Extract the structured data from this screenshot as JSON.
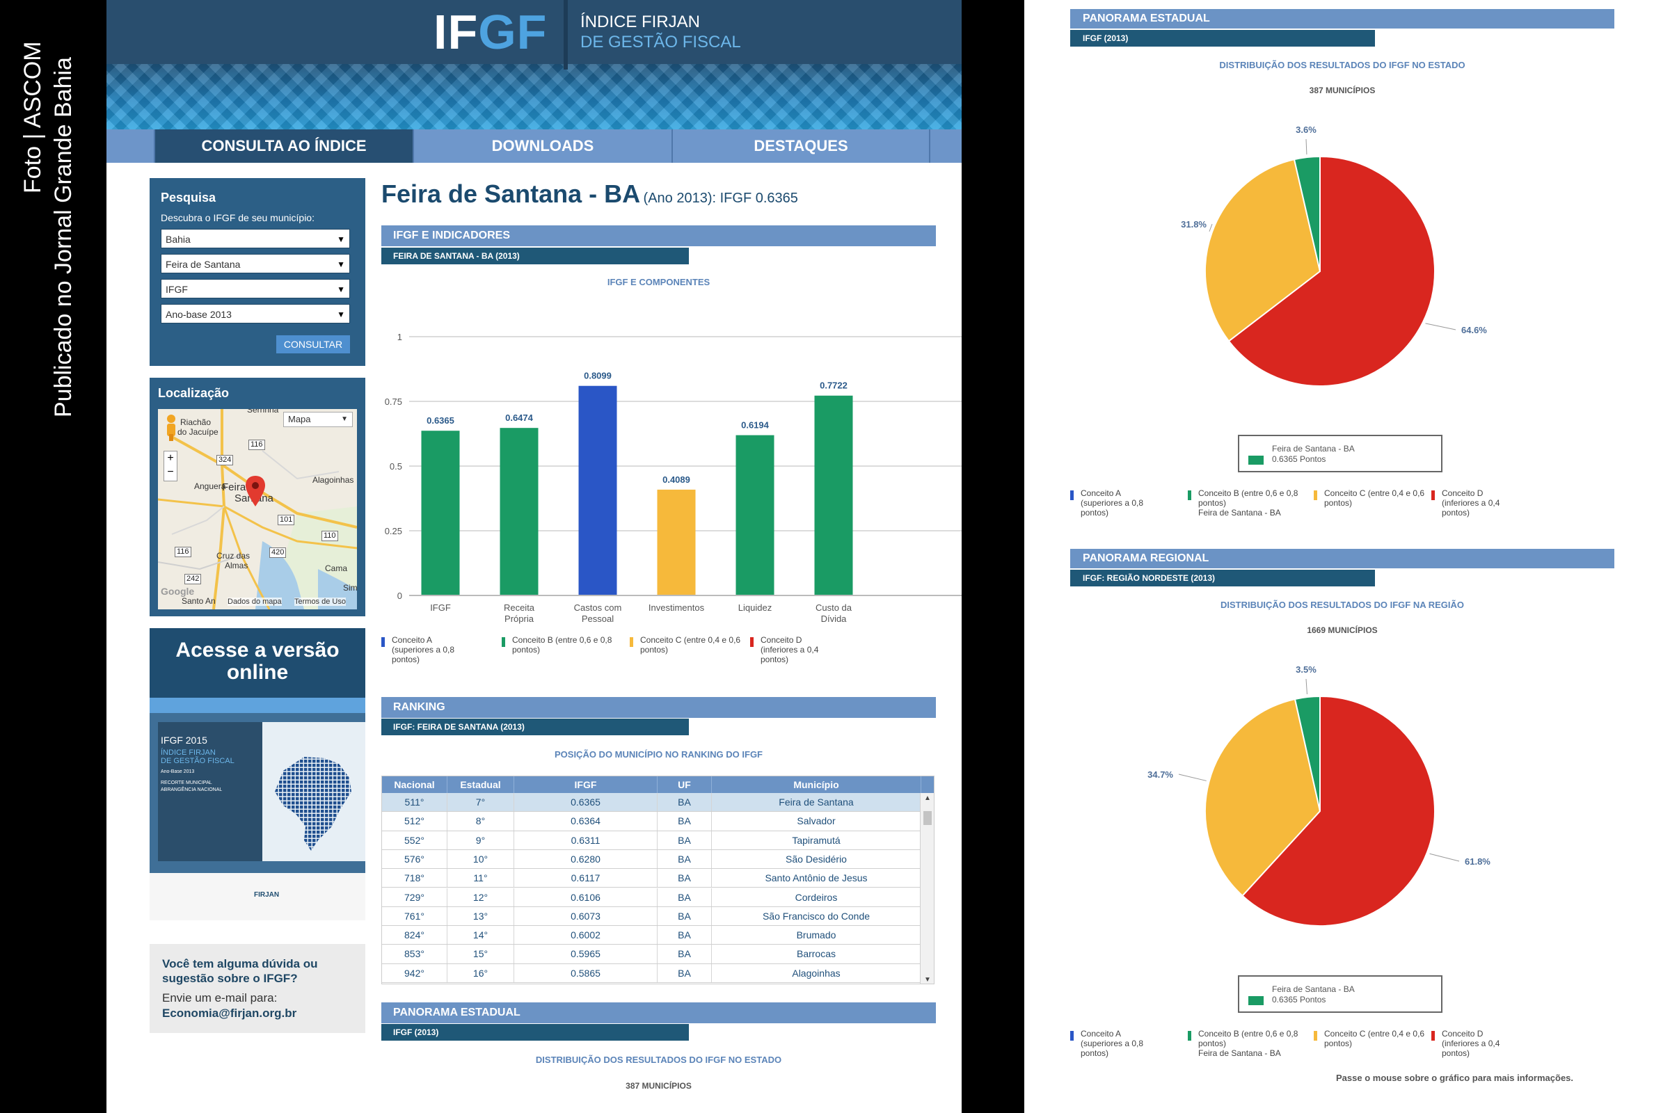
{
  "watermark": {
    "line1": "Foto | ASCOM",
    "line2": "Publicado no Jornal Grande Bahia"
  },
  "header": {
    "logo_if": "IF",
    "logo_gf": "GF",
    "subtitle_line1": "ÍNDICE FIRJAN",
    "subtitle_line2": "DE GESTÃO FISCAL"
  },
  "nav": {
    "tabs": [
      {
        "label": "CONSULTA AO ÍNDICE",
        "active": true
      },
      {
        "label": "DOWNLOADS",
        "active": false
      },
      {
        "label": "DESTAQUES",
        "active": false
      }
    ]
  },
  "search": {
    "title": "Pesquisa",
    "hint": "Descubra o IFGF de seu município:",
    "state": "Bahia",
    "city": "Feira de Santana",
    "indicator": "IFGF",
    "year": "Ano-base 2013",
    "button": "CONSULTAR"
  },
  "location": {
    "title": "Localização",
    "map_type": "Mapa",
    "labels": {
      "serrinha": "Serrinha",
      "riachao": "Riachão",
      "jacuipe": "do Jacuípe",
      "anguera": "Anguera",
      "feira1": "Feira de",
      "feira2": "Santana",
      "alagoinhas": "Alagoinhas",
      "cruz1": "Cruz das",
      "cruz2": "Almas",
      "santo": "Santo An",
      "cama": "Cama",
      "sim": "Sim",
      "google": "Google",
      "dados": "Dados do mapa",
      "termos": "Termos de Uso"
    },
    "shields": [
      "116",
      "324",
      "101",
      "110",
      "116",
      "420",
      "242"
    ],
    "zoom_in": "+",
    "zoom_out": "−"
  },
  "promo": {
    "title_line1": "Acesse a versão",
    "title_line2": "online",
    "cover_year": "IFGF 2015",
    "cover_l1": "ÍNDICE FIRJAN",
    "cover_l2": "DE GESTÃO FISCAL",
    "cover_l3": "Ano-Base 2013",
    "cover_l4": "RECORTE MUNICIPAL",
    "cover_l5": "ABRANGÊNCIA NACIONAL",
    "footer_brand": "FIRJAN"
  },
  "contact": {
    "question": "Você tem alguma dúvida ou sugestão sobre o IFGF?",
    "label": "Envie um e-mail para:",
    "email": "Economia@firjan.org.br"
  },
  "title": {
    "city": "Feira de Santana - BA",
    "detail": "(Ano 2013): IFGF  0.6365"
  },
  "sections": {
    "ifgf_title": "IFGF E INDICADORES",
    "ifgf_sub": "FEIRA DE SANTANA - BA (2013)",
    "ifgf_caption": "IFGF E COMPONENTES",
    "ranking_title": "RANKING",
    "ranking_sub": "IFGF: FEIRA DE SANTANA (2013)",
    "ranking_caption": "POSIÇÃO DO MUNICÍPIO NO RANKING DO IFGF",
    "panorama_title": "PANORAMA ESTADUAL",
    "panorama_sub": "IFGF (2013)",
    "panorama_caption": "DISTRIBUIÇÃO DOS RESULTADOS DO IFGF NO ESTADO",
    "panorama_count": "387 MUNICÍPIOS"
  },
  "legend": [
    {
      "label": "Conceito A (superiores a 0,8 pontos)",
      "color": "#2a56c6"
    },
    {
      "label": "Conceito B (entre 0,6 e 0,8 pontos)",
      "color": "#1a9b64"
    },
    {
      "label": "Conceito C (entre 0,4 e 0,6 pontos)",
      "color": "#f6b93b"
    },
    {
      "label": "Conceito D (inferiores a 0,4 pontos)",
      "color": "#d9261f"
    }
  ],
  "chart_data": [
    {
      "type": "bar",
      "title": "IFGF E COMPONENTES",
      "categories": [
        "IFGF",
        "Receita Própria",
        "Castos com Pessoal",
        "Investimentos",
        "Liquidez",
        "Custo da Dívida"
      ],
      "values": [
        0.6365,
        0.6474,
        0.8099,
        0.4089,
        0.6194,
        0.7722
      ],
      "value_labels": [
        "0.6365",
        "0.6474",
        "0.8099",
        "0.4089",
        "0.6194",
        "0.7722"
      ],
      "colors": [
        "#1a9b64",
        "#1a9b64",
        "#2a56c6",
        "#f6b93b",
        "#1a9b64",
        "#1a9b64"
      ],
      "yticks": [
        0,
        0.25,
        0.5,
        0.75,
        1
      ],
      "ytick_labels": [
        "0",
        "0.25",
        "0.5",
        "0.75",
        "1"
      ],
      "ylim": [
        0,
        1
      ],
      "grid": true
    },
    {
      "type": "pie",
      "title": "DISTRIBUIÇÃO DOS RESULTADOS DO IFGF NO ESTADO",
      "subtitle": "387 MUNICÍPIOS",
      "slices": [
        {
          "label": "Conceito D",
          "value": 64.6,
          "text": "64.6%",
          "color": "#d9261f"
        },
        {
          "label": "Conceito C",
          "value": 31.8,
          "text": "31.8%",
          "color": "#f6b93b"
        },
        {
          "label": "Conceito B",
          "value": 3.6,
          "text": "3.6%",
          "color": "#1a9b64"
        }
      ],
      "highlight": {
        "name": "Feira de Santana - BA",
        "points": "0.6365 Pontos"
      }
    },
    {
      "type": "pie",
      "title": "DISTRIBUIÇÃO DOS RESULTADOS DO IFGF NA REGIÃO",
      "subtitle": "1669 MUNICÍPIOS",
      "slices": [
        {
          "label": "Conceito D",
          "value": 61.8,
          "text": "61.8%",
          "color": "#d9261f"
        },
        {
          "label": "Conceito C",
          "value": 34.7,
          "text": "34.7%",
          "color": "#f6b93b"
        },
        {
          "label": "Conceito B",
          "value": 3.5,
          "text": "3.5%",
          "color": "#1a9b64"
        }
      ],
      "highlight": {
        "name": "Feira de Santana - BA",
        "points": "0.6365 Pontos"
      }
    }
  ],
  "ranking": {
    "headers": [
      "Nacional",
      "Estadual",
      "IFGF",
      "UF",
      "Município"
    ],
    "rows": [
      [
        "511°",
        "7°",
        "0.6365",
        "BA",
        "Feira de Santana"
      ],
      [
        "512°",
        "8°",
        "0.6364",
        "BA",
        "Salvador"
      ],
      [
        "552°",
        "9°",
        "0.6311",
        "BA",
        "Tapiramutá"
      ],
      [
        "576°",
        "10°",
        "0.6280",
        "BA",
        "São Desidério"
      ],
      [
        "718°",
        "11°",
        "0.6117",
        "BA",
        "Santo Antônio de Jesus"
      ],
      [
        "729°",
        "12°",
        "0.6106",
        "BA",
        "Cordeiros"
      ],
      [
        "761°",
        "13°",
        "0.6073",
        "BA",
        "São Francisco do Conde"
      ],
      [
        "824°",
        "14°",
        "0.6002",
        "BA",
        "Brumado"
      ],
      [
        "853°",
        "15°",
        "0.5965",
        "BA",
        "Barrocas"
      ],
      [
        "942°",
        "16°",
        "0.5865",
        "BA",
        "Alagoinhas"
      ]
    ],
    "scroll_up": "▲",
    "scroll_down": "▼"
  },
  "right": {
    "state_title": "PANORAMA ESTADUAL",
    "state_sub": "IFGF (2013)",
    "state_caption": "DISTRIBUIÇÃO DOS RESULTADOS DO IFGF NO ESTADO",
    "state_count": "387 MUNICÍPIOS",
    "region_title": "PANORAMA REGIONAL",
    "region_sub": "IFGF: REGIÃO NORDESTE (2013)",
    "region_caption": "DISTRIBUIÇÃO DOS RESULTADOS DO IFGF NA REGIÃO",
    "region_count": "1669 MUNICÍPIOS",
    "legend_b_extra": "Feira de Santana - BA",
    "hint": "Passe o mouse sobre o gráfico para mais informações."
  }
}
